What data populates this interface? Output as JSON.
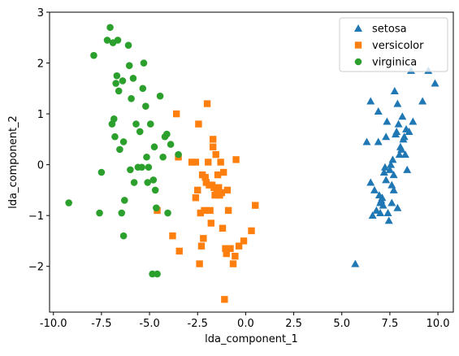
{
  "chart_data": {
    "type": "scatter",
    "title": "",
    "xlabel": "lda_component_1",
    "ylabel": "lda_component_2",
    "xlim": [
      -10.2,
      10.8
    ],
    "ylim": [
      -2.9,
      3.0
    ],
    "xticks": [
      -10.0,
      -7.5,
      -5.0,
      -2.5,
      0.0,
      2.5,
      5.0,
      7.5,
      10.0
    ],
    "yticks": [
      -2,
      -1,
      0,
      1,
      2,
      3
    ],
    "grid": false,
    "legend_position": "top-right",
    "series": [
      {
        "name": "setosa",
        "marker": "triangle",
        "color": "#1f77b4",
        "points": [
          [
            5.7,
            -1.95
          ],
          [
            6.3,
            0.45
          ],
          [
            6.5,
            1.25
          ],
          [
            6.5,
            -0.35
          ],
          [
            6.6,
            -1.0
          ],
          [
            6.7,
            -0.5
          ],
          [
            6.8,
            -0.9
          ],
          [
            6.9,
            0.45
          ],
          [
            6.9,
            1.05
          ],
          [
            6.95,
            -0.6
          ],
          [
            7.0,
            -0.75
          ],
          [
            7.0,
            -0.95
          ],
          [
            7.05,
            -0.7
          ],
          [
            7.1,
            -0.65
          ],
          [
            7.15,
            -0.8
          ],
          [
            7.2,
            -0.15
          ],
          [
            7.25,
            -0.05
          ],
          [
            7.3,
            -0.3
          ],
          [
            7.3,
            0.55
          ],
          [
            7.35,
            0.85
          ],
          [
            7.4,
            -0.95
          ],
          [
            7.45,
            -1.1
          ],
          [
            7.5,
            -0.1
          ],
          [
            7.55,
            0.0
          ],
          [
            7.6,
            -0.4
          ],
          [
            7.6,
            -0.75
          ],
          [
            7.65,
            0.1
          ],
          [
            7.7,
            -0.5
          ],
          [
            7.7,
            -0.2
          ],
          [
            7.75,
            1.45
          ],
          [
            7.8,
            0.6
          ],
          [
            7.85,
            0.65
          ],
          [
            7.9,
            -0.85
          ],
          [
            7.9,
            1.2
          ],
          [
            7.95,
            0.8
          ],
          [
            8.0,
            0.2
          ],
          [
            8.05,
            0.35
          ],
          [
            8.1,
            0.3
          ],
          [
            8.15,
            0.95
          ],
          [
            8.2,
            0.5
          ],
          [
            8.25,
            0.55
          ],
          [
            8.3,
            0.2
          ],
          [
            8.35,
            0.7
          ],
          [
            8.4,
            -0.1
          ],
          [
            8.5,
            0.65
          ],
          [
            8.6,
            1.85
          ],
          [
            8.7,
            0.85
          ],
          [
            9.2,
            1.25
          ],
          [
            9.5,
            1.85
          ],
          [
            9.85,
            1.6
          ]
        ]
      },
      {
        "name": "versicolor",
        "marker": "square",
        "color": "#ff7f0e",
        "points": [
          [
            -4.6,
            -0.9
          ],
          [
            -3.8,
            -1.4
          ],
          [
            -3.6,
            1.0
          ],
          [
            -3.5,
            0.15
          ],
          [
            -3.45,
            -1.7
          ],
          [
            -2.8,
            0.05
          ],
          [
            -2.6,
            0.05
          ],
          [
            -2.6,
            -0.65
          ],
          [
            -2.5,
            -0.5
          ],
          [
            -2.45,
            0.8
          ],
          [
            -2.4,
            -1.95
          ],
          [
            -2.35,
            -0.95
          ],
          [
            -2.3,
            -1.6
          ],
          [
            -2.25,
            -0.2
          ],
          [
            -2.2,
            -1.45
          ],
          [
            -2.15,
            -0.9
          ],
          [
            -2.1,
            -0.25
          ],
          [
            -2.05,
            -0.35
          ],
          [
            -2.0,
            1.2
          ],
          [
            -1.95,
            0.05
          ],
          [
            -1.9,
            -0.4
          ],
          [
            -1.85,
            -0.9
          ],
          [
            -1.8,
            -1.15
          ],
          [
            -1.75,
            -0.4
          ],
          [
            -1.7,
            0.5
          ],
          [
            -1.7,
            0.35
          ],
          [
            -1.65,
            -0.45
          ],
          [
            -1.6,
            -0.6
          ],
          [
            -1.55,
            0.2
          ],
          [
            -1.5,
            -0.5
          ],
          [
            -1.45,
            -0.2
          ],
          [
            -1.4,
            -0.45
          ],
          [
            -1.35,
            -0.6
          ],
          [
            -1.3,
            0.05
          ],
          [
            -1.25,
            -0.55
          ],
          [
            -1.2,
            -1.25
          ],
          [
            -1.15,
            -0.15
          ],
          [
            -1.1,
            -2.65
          ],
          [
            -1.05,
            -1.65
          ],
          [
            -1.0,
            -1.75
          ],
          [
            -0.95,
            -0.5
          ],
          [
            -0.9,
            -0.9
          ],
          [
            -0.8,
            -1.65
          ],
          [
            -0.65,
            -1.95
          ],
          [
            -0.55,
            -1.8
          ],
          [
            -0.5,
            0.1
          ],
          [
            -0.35,
            -1.6
          ],
          [
            -0.1,
            -1.5
          ],
          [
            0.3,
            -1.3
          ],
          [
            0.5,
            -0.8
          ]
        ]
      },
      {
        "name": "virginica",
        "marker": "circle",
        "color": "#2ca02c",
        "points": [
          [
            -9.2,
            -0.75
          ],
          [
            -7.9,
            2.15
          ],
          [
            -7.6,
            -0.95
          ],
          [
            -7.5,
            -0.15
          ],
          [
            -7.2,
            2.45
          ],
          [
            -7.05,
            2.7
          ],
          [
            -6.95,
            0.8
          ],
          [
            -6.9,
            2.4
          ],
          [
            -6.85,
            0.9
          ],
          [
            -6.8,
            0.55
          ],
          [
            -6.75,
            1.6
          ],
          [
            -6.7,
            1.75
          ],
          [
            -6.65,
            2.45
          ],
          [
            -6.6,
            1.45
          ],
          [
            -6.55,
            0.3
          ],
          [
            -6.45,
            -0.95
          ],
          [
            -6.4,
            1.65
          ],
          [
            -6.35,
            0.45
          ],
          [
            -6.35,
            -1.4
          ],
          [
            -6.3,
            -0.7
          ],
          [
            -6.1,
            2.35
          ],
          [
            -6.05,
            1.95
          ],
          [
            -6.0,
            -0.1
          ],
          [
            -5.95,
            1.3
          ],
          [
            -5.85,
            1.7
          ],
          [
            -5.8,
            -0.35
          ],
          [
            -5.7,
            0.8
          ],
          [
            -5.6,
            -0.05
          ],
          [
            -5.5,
            0.65
          ],
          [
            -5.4,
            -0.05
          ],
          [
            -5.35,
            1.5
          ],
          [
            -5.3,
            2.0
          ],
          [
            -5.2,
            1.15
          ],
          [
            -5.15,
            0.15
          ],
          [
            -5.1,
            -0.35
          ],
          [
            -5.05,
            -0.05
          ],
          [
            -4.95,
            0.8
          ],
          [
            -4.85,
            -2.15
          ],
          [
            -4.8,
            -0.3
          ],
          [
            -4.75,
            0.35
          ],
          [
            -4.7,
            -0.5
          ],
          [
            -4.65,
            -0.85
          ],
          [
            -4.45,
            1.35
          ],
          [
            -4.3,
            0.15
          ],
          [
            -4.2,
            0.55
          ],
          [
            -4.1,
            0.6
          ],
          [
            -4.05,
            -0.95
          ],
          [
            -3.9,
            0.4
          ],
          [
            -3.5,
            0.2
          ],
          [
            -4.6,
            -2.15
          ]
        ]
      }
    ]
  }
}
